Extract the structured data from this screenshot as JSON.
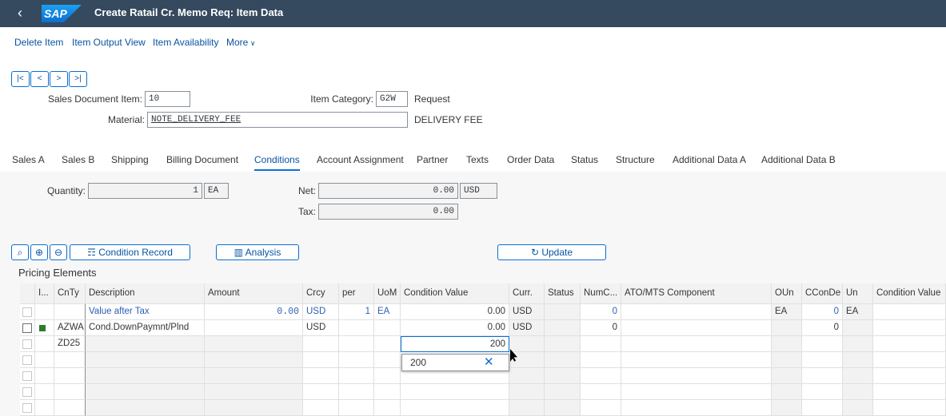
{
  "header": {
    "logo": "SAP",
    "title": "Create Ratail Cr. Memo Req: Item Data"
  },
  "toolbar": [
    "Delete Item",
    "Item Output View",
    "Item Availability",
    "More"
  ],
  "fields": {
    "sales_document_item": {
      "label": "Sales Document Item:",
      "value": "10"
    },
    "item_category": {
      "label": "Item Category:",
      "value": "G2W",
      "text": "Request"
    },
    "material": {
      "label": "Material:",
      "value": "NOTE_DELIVERY_FEE",
      "text": "DELIVERY FEE"
    }
  },
  "tabs": {
    "items": [
      "Sales A",
      "Sales B",
      "Shipping",
      "Billing Document",
      "Conditions",
      "Account Assignment",
      "Partner",
      "Texts",
      "Order Data",
      "Status",
      "Structure",
      "Additional Data A",
      "Additional Data B"
    ],
    "active": 4
  },
  "conditions": {
    "quantity": {
      "label": "Quantity:",
      "value": "1",
      "unit": "EA"
    },
    "net": {
      "label": "Net:",
      "value": "0.00",
      "currency": "USD"
    },
    "tax": {
      "label": "Tax:",
      "value": "0.00"
    }
  },
  "buttons": [
    "Condition Record",
    "Analysis",
    "Update"
  ],
  "table": {
    "title": "Pricing Elements",
    "columns": [
      "I...",
      "CnTy",
      "Description",
      "Amount",
      "Crcy",
      "per",
      "UoM",
      "Condition Value",
      "Curr.",
      "Status",
      "NumC...",
      "ATO/MTS Component",
      "OUn",
      "CConDe",
      "Un",
      "Condition Value"
    ],
    "rows": [
      [
        null,
        null,
        "Value after Tax",
        "0.00",
        "USD",
        "1",
        "EA",
        "0.00",
        "USD",
        null,
        "0",
        null,
        "EA",
        "0",
        "EA",
        null
      ],
      [
        null,
        "AZWA",
        "Cond.DownPaymnt/Plnd",
        null,
        "USD",
        null,
        null,
        "0.00",
        "USD",
        null,
        "0",
        null,
        null,
        "0",
        null,
        null
      ],
      [
        null,
        "ZD25",
        null,
        null,
        null,
        null,
        null,
        "200",
        null,
        null,
        null,
        null,
        null,
        null,
        null,
        null
      ]
    ]
  },
  "dropdown": {
    "value": "200"
  }
}
